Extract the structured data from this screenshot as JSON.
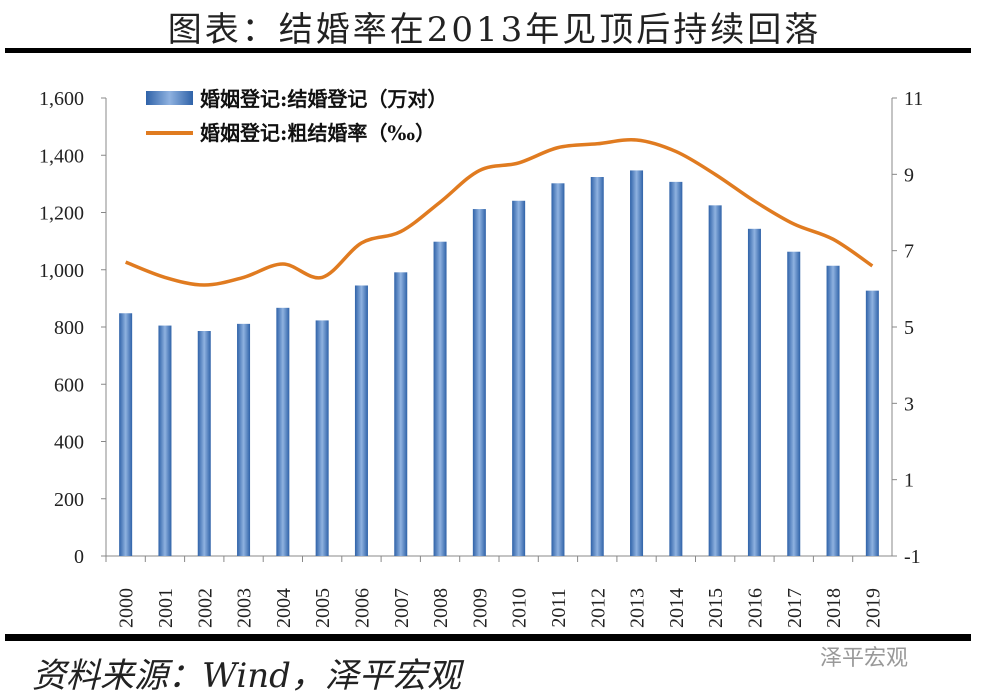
{
  "title": "图表：结婚率在2013年见顶后持续回落",
  "source": "资料来源：Wind，泽平宏观",
  "watermark": "泽平宏观",
  "chart_data": {
    "type": "bar+line",
    "categories": [
      "2000",
      "2001",
      "2002",
      "2003",
      "2004",
      "2005",
      "2006",
      "2007",
      "2008",
      "2009",
      "2010",
      "2011",
      "2012",
      "2013",
      "2014",
      "2015",
      "2016",
      "2017",
      "2018",
      "2019"
    ],
    "series": [
      {
        "name": "婚姻登记:结婚登记（万对）",
        "type": "bar",
        "axis": "left",
        "color": "#4a7fc1",
        "values": [
          848,
          805,
          786,
          811,
          867,
          823,
          945,
          991,
          1098,
          1212,
          1241,
          1302,
          1324,
          1347,
          1307,
          1225,
          1143,
          1063,
          1014,
          927
        ]
      },
      {
        "name": "婚姻登记:粗结婚率（‰）",
        "type": "line",
        "axis": "right",
        "color": "#e07b20",
        "values": [
          6.7,
          6.3,
          6.1,
          6.3,
          6.65,
          6.3,
          7.2,
          7.5,
          8.27,
          9.1,
          9.3,
          9.7,
          9.8,
          9.9,
          9.6,
          9.0,
          8.3,
          7.7,
          7.3,
          6.6
        ]
      }
    ],
    "yleft": {
      "lim": [
        0,
        1600
      ],
      "ticks": [
        "0",
        "200",
        "400",
        "600",
        "800",
        "1,000",
        "1,200",
        "1,400",
        "1,600"
      ]
    },
    "yright": {
      "lim": [
        -1,
        11
      ],
      "ticks": [
        "-1",
        "1",
        "3",
        "5",
        "7",
        "9",
        "11"
      ]
    },
    "legend": "top-left",
    "grid": false
  }
}
